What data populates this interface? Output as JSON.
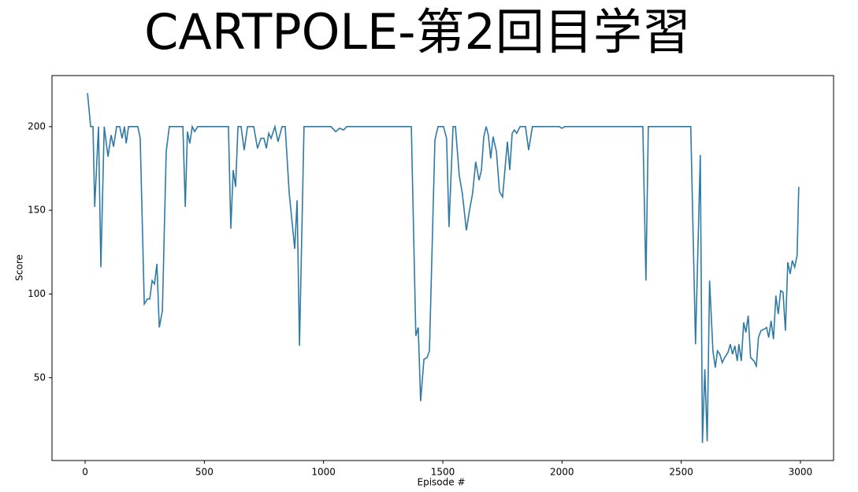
{
  "chart_data": {
    "type": "line",
    "title": "CARTPOLE-第2回目学習",
    "x_label": "Episode #",
    "y_label": "Score",
    "series": [
      {
        "name": "Score",
        "color": "#2e7aa6",
        "x": [
          10,
          23,
          33,
          40,
          56,
          66,
          80,
          96,
          109,
          119,
          132,
          145,
          155,
          165,
          172,
          182,
          221,
          231,
          248,
          261,
          271,
          281,
          291,
          301,
          311,
          324,
          340,
          353,
          410,
          420,
          429,
          439,
          449,
          459,
          472,
          601,
          611,
          621,
          631,
          641,
          654,
          667,
          681,
          707,
          723,
          737,
          750,
          760,
          770,
          780,
          796,
          809,
          826,
          839,
          856,
          879,
          889,
          899,
          918,
          1031,
          1051,
          1067,
          1084,
          1097,
          1130,
          1368,
          1387,
          1397,
          1407,
          1421,
          1434,
          1444,
          1467,
          1480,
          1503,
          1516,
          1526,
          1543,
          1553,
          1569,
          1582,
          1599,
          1612,
          1625,
          1638,
          1652,
          1662,
          1672,
          1682,
          1691,
          1701,
          1711,
          1725,
          1738,
          1751,
          1761,
          1771,
          1781,
          1791,
          1800,
          1810,
          1824,
          1847,
          1860,
          1876,
          1989,
          1999,
          2012,
          2339,
          2352,
          2362,
          2540,
          2560,
          2580,
          2589,
          2599,
          2609,
          2619,
          2633,
          2643,
          2652,
          2662,
          2672,
          2682,
          2696,
          2706,
          2715,
          2725,
          2735,
          2742,
          2752,
          2762,
          2771,
          2781,
          2791,
          2805,
          2815,
          2824,
          2834,
          2848,
          2858,
          2867,
          2877,
          2887,
          2897,
          2907,
          2917,
          2927,
          2937,
          2947,
          2957,
          2966,
          2976,
          2986,
          2993
        ],
        "values": [
          220,
          200,
          200,
          152,
          200,
          116,
          200,
          182,
          195,
          188,
          200,
          200,
          193,
          200,
          190,
          200,
          200,
          193,
          94,
          97,
          97,
          108,
          106,
          118,
          80,
          90,
          185,
          200,
          200,
          152,
          197,
          190,
          200,
          197,
          200,
          200,
          139,
          174,
          164,
          200,
          200,
          186,
          200,
          200,
          187,
          193,
          193,
          187,
          196,
          193,
          200,
          191,
          200,
          200,
          160,
          127,
          156,
          69,
          200,
          200,
          197,
          199,
          198,
          200,
          200,
          200,
          75,
          80,
          36,
          61,
          62,
          66,
          192,
          200,
          200,
          193,
          140,
          200,
          200,
          171,
          160,
          138,
          150,
          160,
          179,
          168,
          174,
          194,
          200,
          195,
          181,
          194,
          185,
          161,
          158,
          175,
          191,
          174,
          196,
          198,
          196,
          200,
          200,
          186,
          200,
          200,
          199,
          200,
          200,
          108,
          200,
          200,
          70,
          183,
          11,
          55,
          12,
          108,
          66,
          56,
          66,
          64,
          59,
          62,
          65,
          70,
          64,
          69,
          60,
          70,
          60,
          83,
          77,
          87,
          62,
          60,
          57,
          74,
          78,
          79,
          80,
          74,
          84,
          73,
          99,
          88,
          102,
          101,
          78,
          119,
          112,
          120,
          116,
          123,
          164
        ]
      }
    ],
    "xlim": [
      -139,
      3139
    ],
    "xticks": [
      0,
      500,
      1000,
      1500,
      2000,
      2500,
      3000
    ],
    "ylim": [
      0.5,
      230.5
    ],
    "yticks": [
      50,
      100,
      150,
      200
    ]
  }
}
